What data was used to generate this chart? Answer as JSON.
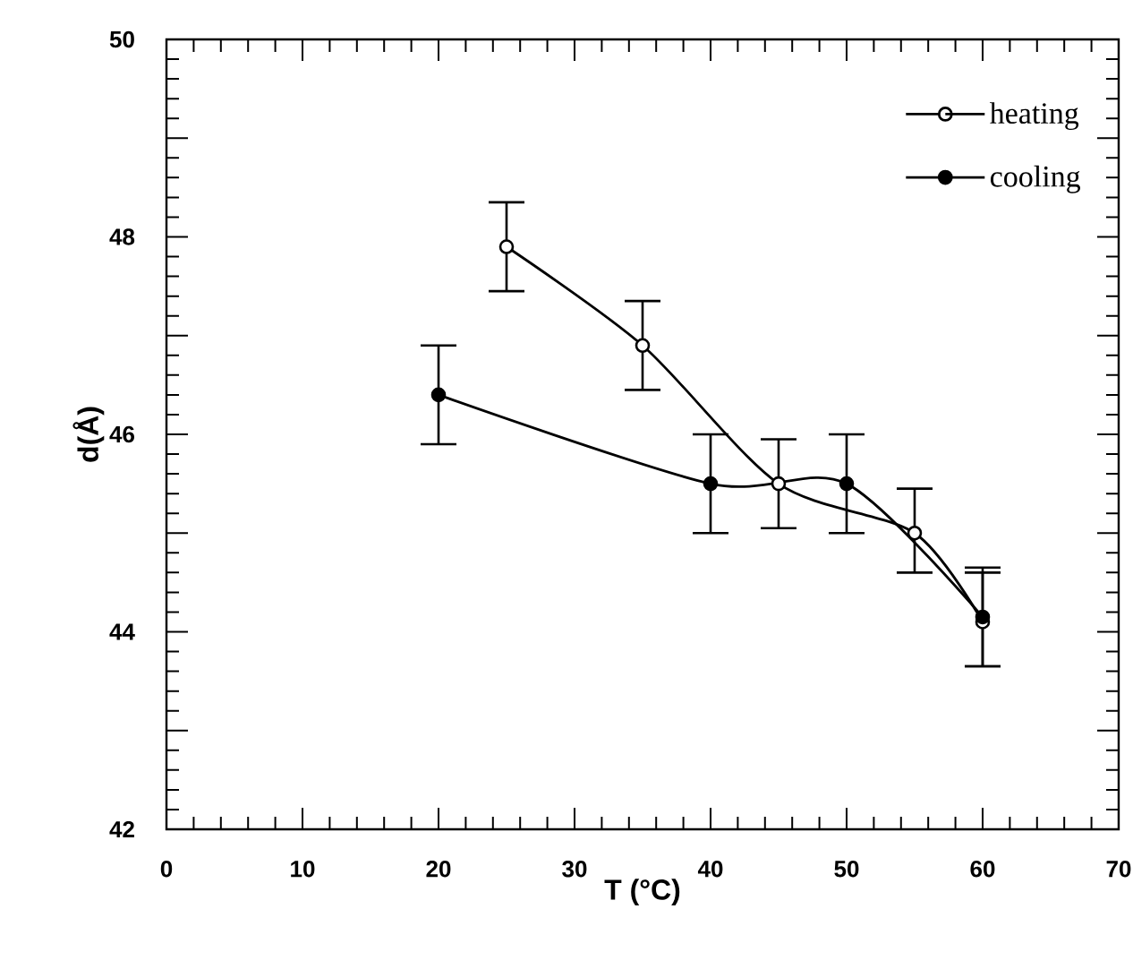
{
  "chart_data": {
    "type": "line",
    "xlabel": "T (°C)",
    "ylabel": "d(Å)",
    "xlim": [
      0,
      70
    ],
    "ylim": [
      42,
      50
    ],
    "xticks": [
      0,
      10,
      20,
      30,
      40,
      50,
      60,
      70
    ],
    "yticks": [
      42,
      {
        "value": 43,
        "label": null
      },
      44,
      {
        "value": 45,
        "label": null
      },
      46,
      {
        "value": 47,
        "label": null
      },
      48,
      {
        "value": 49,
        "label": null
      },
      50
    ],
    "grid": false,
    "legend": "top right",
    "marker": "circle",
    "line_style": "solid",
    "series": [
      {
        "name": "heating",
        "color": "#000000",
        "colors": [
          "#ffffff",
          "#ffffff",
          "#ffffff",
          "#ffffff",
          "#ffffff"
        ],
        "x": [
          25,
          35,
          45,
          55,
          60
        ],
        "values": [
          47.9,
          46.9,
          45.5,
          45.0,
          44.1
        ],
        "errors": [
          [
            47.45,
            48.35
          ],
          [
            46.45,
            47.35
          ],
          [
            45.05,
            45.95
          ],
          [
            44.6,
            45.45
          ],
          [
            43.65,
            44.6
          ]
        ]
      },
      {
        "name": "cooling",
        "color": "#000000",
        "colors": [
          "#000000",
          "#000000",
          "#000000",
          "#000000"
        ],
        "x": [
          20,
          40,
          50,
          60
        ],
        "values": [
          46.4,
          45.5,
          45.5,
          44.15
        ],
        "errors": [
          [
            45.9,
            46.9
          ],
          [
            45.0,
            46.0
          ],
          [
            45.0,
            46.0
          ],
          [
            43.65,
            44.65
          ]
        ]
      }
    ]
  }
}
